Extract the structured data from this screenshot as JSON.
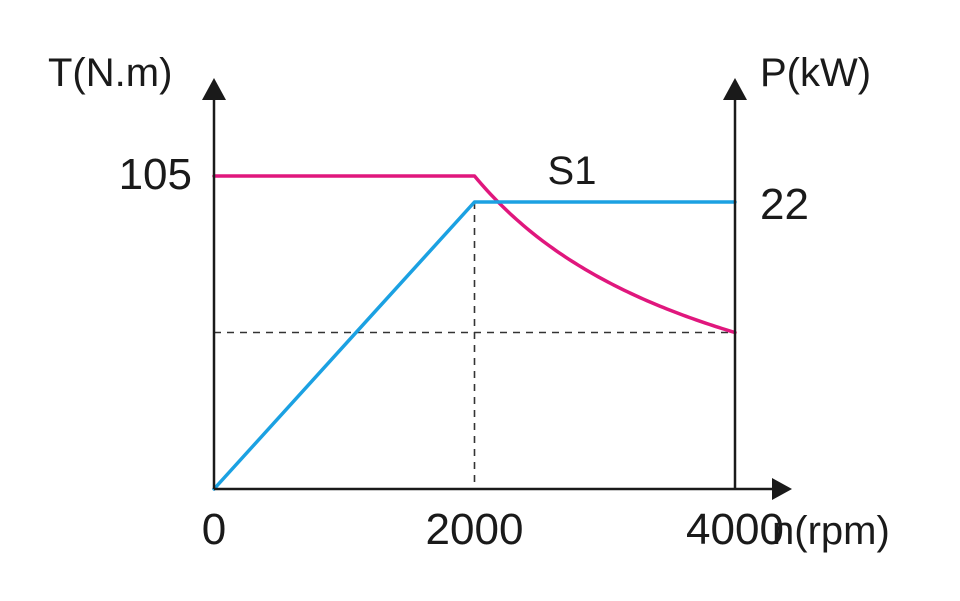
{
  "chart_data": {
    "type": "line",
    "x_axis": {
      "label": "n(rpm)",
      "range": [
        0,
        4000
      ],
      "ticks": [
        "0",
        "2000",
        "4000"
      ],
      "tick_values": [
        0,
        2000,
        4000
      ]
    },
    "y_left_axis": {
      "label": "T(N.m)",
      "ticks": [
        "105"
      ],
      "tick_values": [
        105
      ]
    },
    "y_right_axis": {
      "label": "P(kW)",
      "ticks": [
        "22"
      ],
      "tick_values": [
        22
      ]
    },
    "annotations": [
      {
        "text": "S1"
      }
    ],
    "series": [
      {
        "axis": "left",
        "color": "#E0177D",
        "x": [
          0,
          2000,
          2250,
          2500,
          2750,
          3000,
          3250,
          3500,
          3750,
          4000
        ],
        "y": [
          105,
          105,
          93.3,
          84,
          76.4,
          70,
          64.6,
          60,
          56,
          52.5
        ]
      },
      {
        "axis": "right",
        "color": "#1BA1E2",
        "x": [
          0,
          2000,
          4000
        ],
        "y": [
          0,
          22,
          22
        ]
      }
    ],
    "guides": [
      {
        "orientation": "vertical",
        "x": 2000
      },
      {
        "orientation": "horizontal",
        "axis": "left",
        "y": 52.5
      }
    ],
    "grid": false,
    "legend": "none"
  }
}
